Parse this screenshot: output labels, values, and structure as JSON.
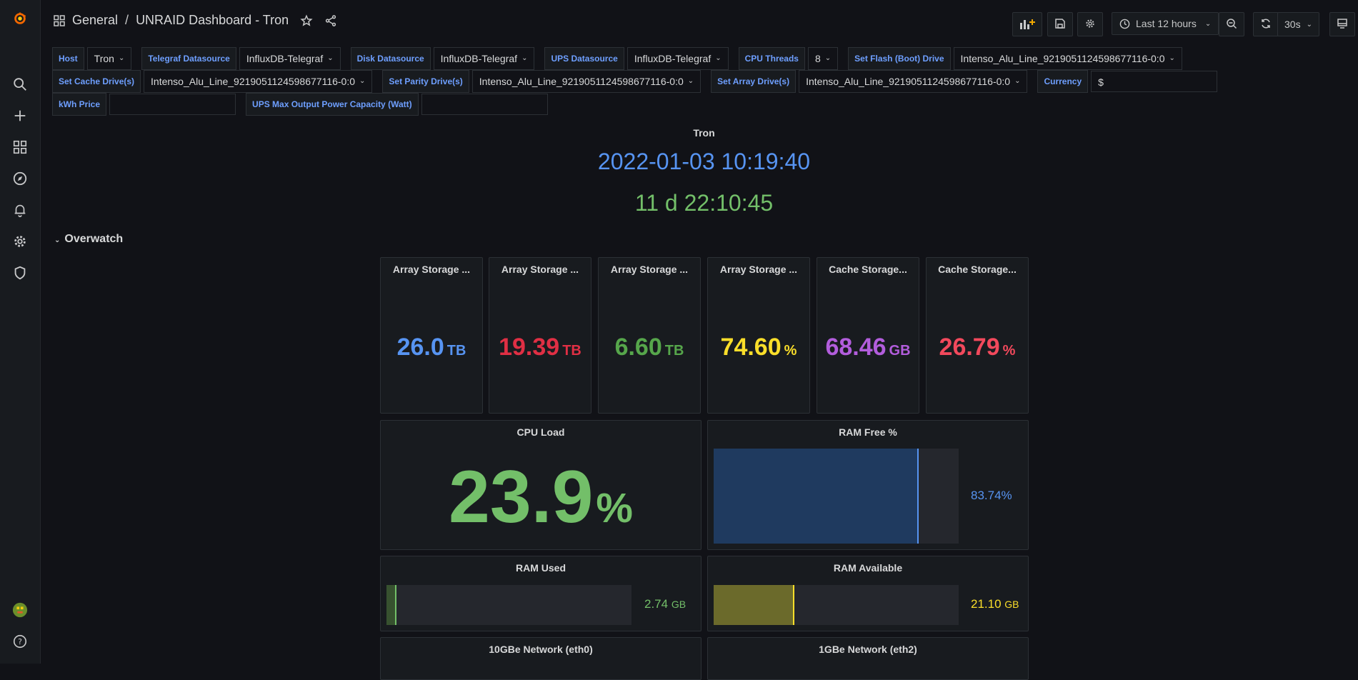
{
  "breadcrumb": {
    "folder": "General",
    "separator": "/",
    "title": "UNRAID Dashboard - Tron"
  },
  "toolbar": {
    "time_range": "Last 12 hours",
    "refresh_interval": "30s"
  },
  "variables": [
    {
      "label": "Host",
      "value": "Tron"
    },
    {
      "label": "Telegraf Datasource",
      "value": "InfluxDB-Telegraf"
    },
    {
      "label": "Disk Datasource",
      "value": "InfluxDB-Telegraf"
    },
    {
      "label": "UPS Datasource",
      "value": "InfluxDB-Telegraf"
    },
    {
      "label": "CPU Threads",
      "value": "8"
    },
    {
      "label": "Set Flash (Boot) Drive",
      "value": "Intenso_Alu_Line_9219051124598677116-0:0"
    },
    {
      "label": "Set Cache Drive(s)",
      "value": "Intenso_Alu_Line_9219051124598677116-0:0"
    },
    {
      "label": "Set Parity Drive(s)",
      "value": "Intenso_Alu_Line_9219051124598677116-0:0"
    },
    {
      "label": "Set Array Drive(s)",
      "value": "Intenso_Alu_Line_9219051124598677116-0:0"
    },
    {
      "label": "Currency",
      "value": "$"
    },
    {
      "label": "kWh Price",
      "value": ""
    },
    {
      "label": "UPS Max Output Power Capacity (Watt)",
      "value": ""
    }
  ],
  "header": {
    "host": "Tron",
    "datetime": "2022-01-03 10:19:40",
    "uptime": "11 d 22:10:45"
  },
  "row_title": "Overwatch",
  "stat_panels": [
    {
      "title": "Array Storage ...",
      "value": "26.0",
      "unit": "TB",
      "color": "#5794f2"
    },
    {
      "title": "Array Storage ...",
      "value": "19.39",
      "unit": "TB",
      "color": "#e02f44"
    },
    {
      "title": "Array Storage ...",
      "value": "6.60",
      "unit": "TB",
      "color": "#56a64b"
    },
    {
      "title": "Array Storage ...",
      "value": "74.60",
      "unit": "%",
      "color": "#fade2a"
    },
    {
      "title": "Cache Storage...",
      "value": "68.46",
      "unit": "GB",
      "color": "#b25ddc"
    },
    {
      "title": "Cache Storage...",
      "value": "26.79",
      "unit": "%",
      "color": "#f2495c"
    }
  ],
  "cpu": {
    "title": "CPU Load",
    "value": "23.9",
    "unit": "%"
  },
  "ram_free": {
    "title": "RAM Free %",
    "value": "83.74%",
    "fraction": 0.8374,
    "color": "#5794f2"
  },
  "ram_used": {
    "title": "RAM Used",
    "value": "2.74",
    "unit": "GB",
    "fraction": 0.04,
    "color": "#73bf69"
  },
  "ram_available": {
    "title": "RAM Available",
    "value": "21.10",
    "unit": "GB",
    "fraction": 0.33,
    "color": "#fade2a"
  },
  "network": {
    "eth0_title": "10GBe Network (eth0)",
    "eth2_title": "1GBe Network (eth2)"
  }
}
